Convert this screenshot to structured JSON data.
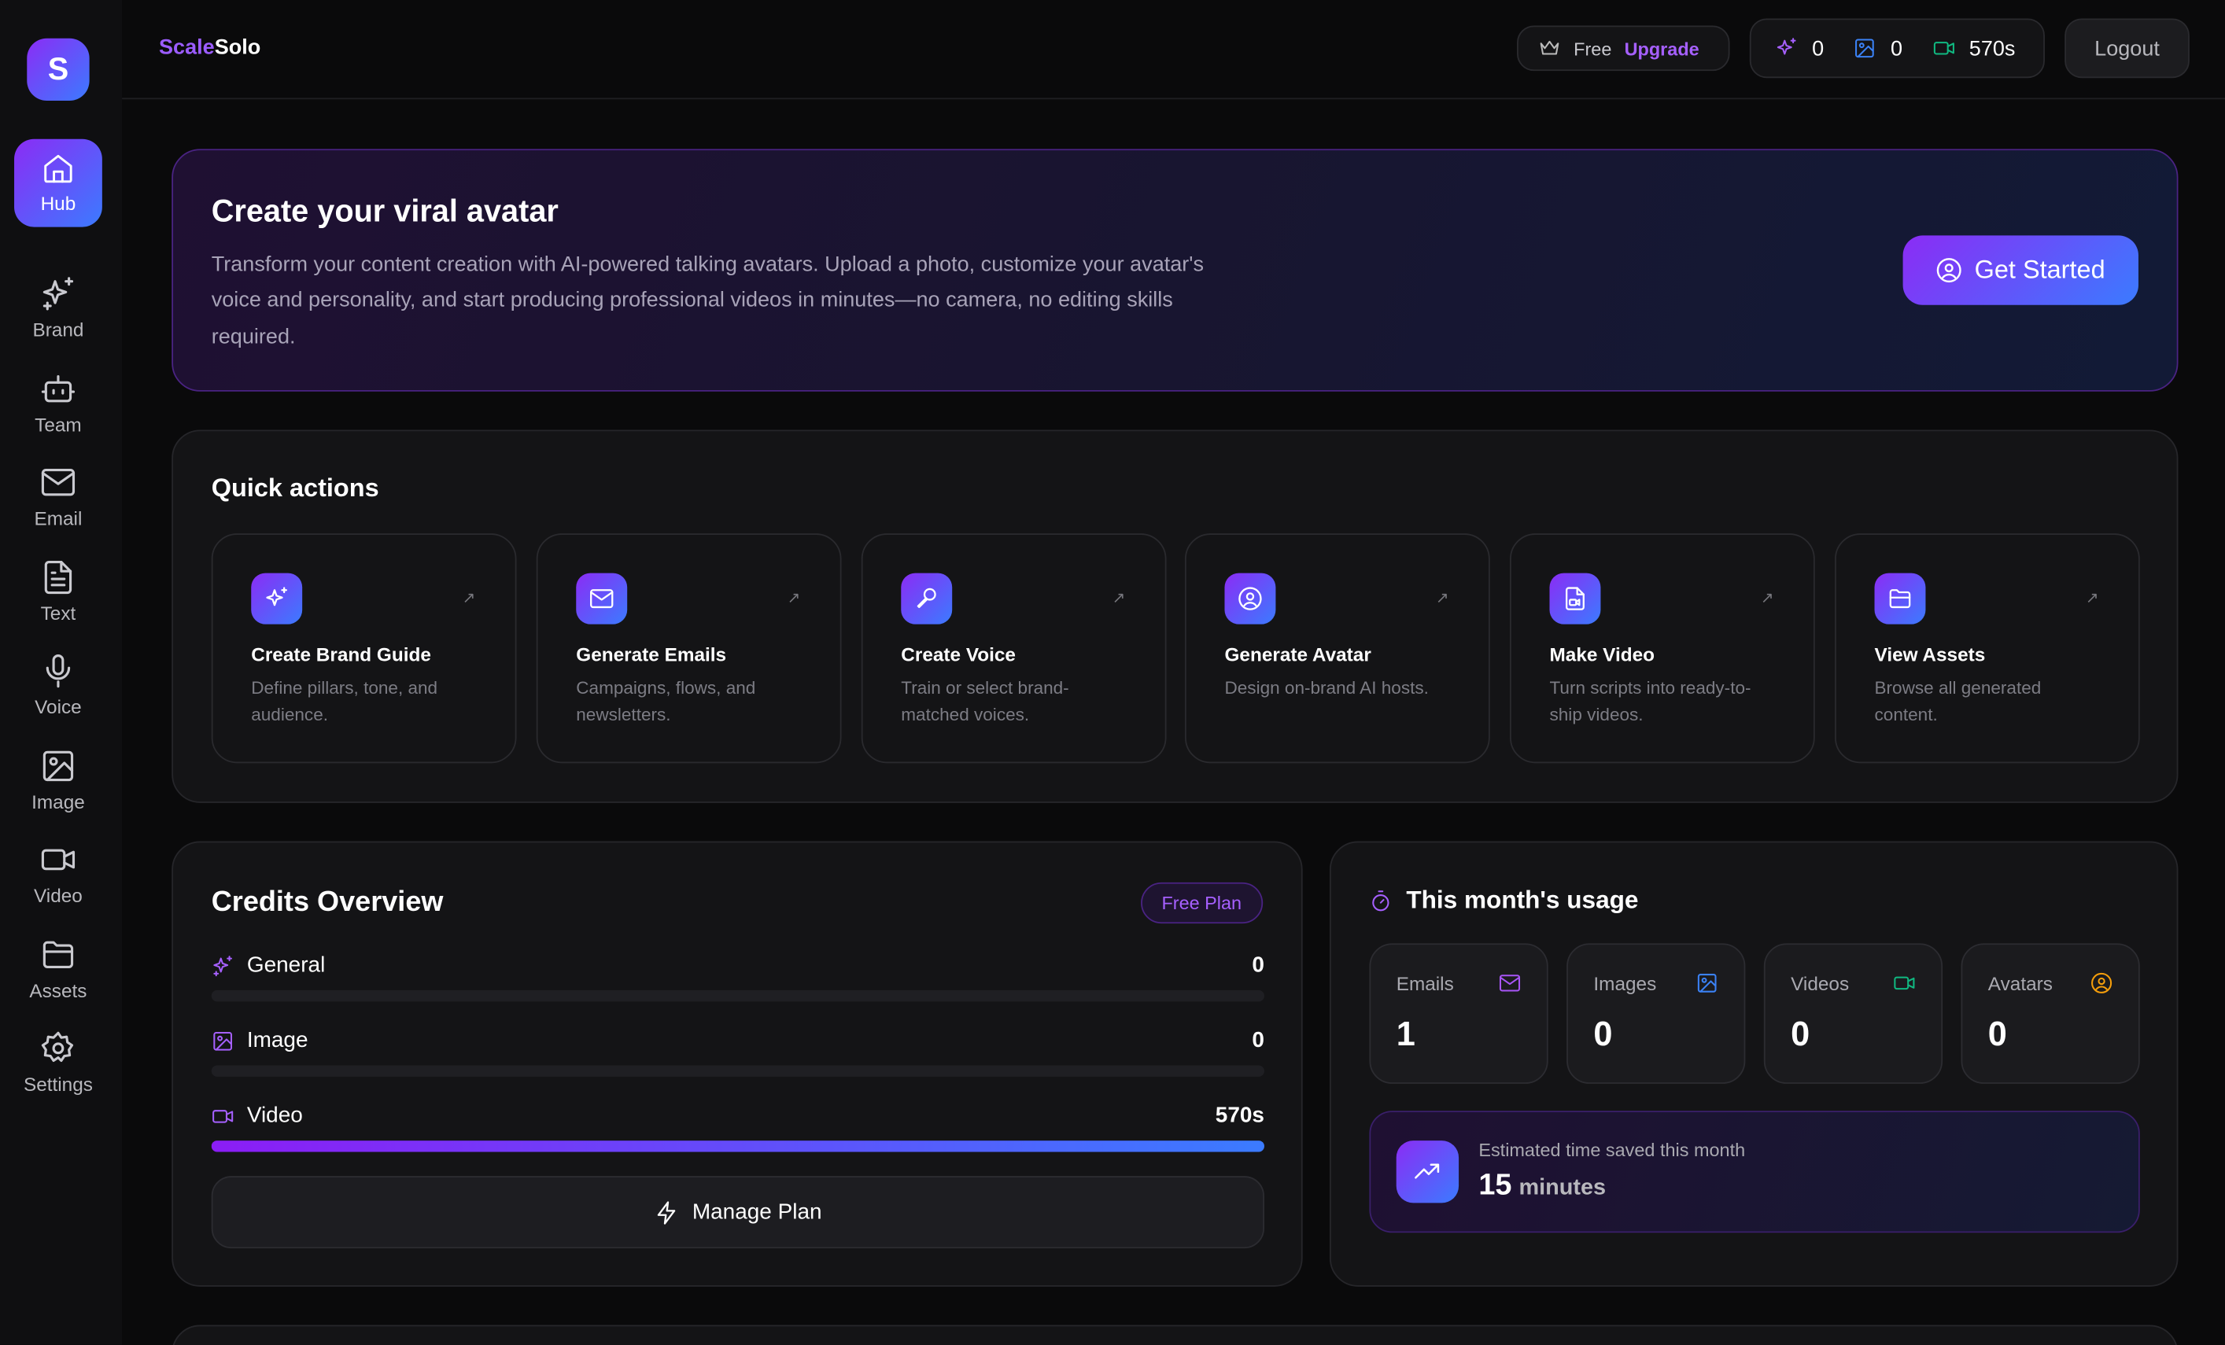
{
  "app": {
    "logo_letter": "S",
    "brand_prefix": "Scale",
    "brand_suffix": "Solo"
  },
  "sidebar": {
    "items": [
      {
        "label": "Hub",
        "icon": "home-icon",
        "active": true
      },
      {
        "label": "Brand",
        "icon": "sparkles-icon"
      },
      {
        "label": "Team",
        "icon": "bot-icon"
      },
      {
        "label": "Email",
        "icon": "mail-icon"
      },
      {
        "label": "Text",
        "icon": "file-text-icon"
      },
      {
        "label": "Voice",
        "icon": "mic-icon"
      },
      {
        "label": "Image",
        "icon": "image-icon"
      },
      {
        "label": "Video",
        "icon": "video-icon"
      },
      {
        "label": "Assets",
        "icon": "folder-icon"
      },
      {
        "label": "Settings",
        "icon": "gear-icon"
      }
    ]
  },
  "header": {
    "plan": "Free",
    "upgrade": "Upgrade",
    "credits": {
      "general": "0",
      "image": "0",
      "video": "570s"
    },
    "logout": "Logout"
  },
  "hero": {
    "title": "Create your viral avatar",
    "description": "Transform your content creation with AI-powered talking avatars. Upload a photo, customize your avatar's voice and personality, and start producing professional videos in minutes—no camera, no editing skills required.",
    "cta": "Get Started"
  },
  "quick_actions": {
    "title": "Quick actions",
    "items": [
      {
        "title": "Create Brand Guide",
        "desc": "Define pillars, tone, and audience.",
        "icon": "sparkles-icon"
      },
      {
        "title": "Generate Emails",
        "desc": "Campaigns, flows, and newsletters.",
        "icon": "mail-icon"
      },
      {
        "title": "Create Voice",
        "desc": "Train or select brand-matched voices.",
        "icon": "mic-pen-icon"
      },
      {
        "title": "Generate Avatar",
        "desc": "Design on-brand AI hosts.",
        "icon": "user-circle-icon"
      },
      {
        "title": "Make Video",
        "desc": "Turn scripts into ready-to-ship videos.",
        "icon": "file-video-icon"
      },
      {
        "title": "View Assets",
        "desc": "Browse all generated content.",
        "icon": "folder-open-icon"
      }
    ]
  },
  "credits": {
    "title": "Credits Overview",
    "badge": "Free Plan",
    "rows": [
      {
        "label": "General",
        "value": "0",
        "fill_percent": 0
      },
      {
        "label": "Image",
        "value": "0",
        "fill_percent": 0
      },
      {
        "label": "Video",
        "value": "570s",
        "fill_percent": 100
      }
    ],
    "manage": "Manage Plan"
  },
  "usage": {
    "title": "This month's usage",
    "stats": [
      {
        "label": "Emails",
        "value": "1",
        "color": "#a855f7"
      },
      {
        "label": "Images",
        "value": "0",
        "color": "#3b82f6"
      },
      {
        "label": "Videos",
        "value": "0",
        "color": "#10b981"
      },
      {
        "label": "Avatars",
        "value": "0",
        "color": "#f59e0b"
      }
    ],
    "saved_label": "Estimated time saved this month",
    "saved_value": "15",
    "saved_unit": "minutes"
  },
  "colors": {
    "accent_purple": "#8b2cf5",
    "accent_blue": "#3b7bff"
  }
}
